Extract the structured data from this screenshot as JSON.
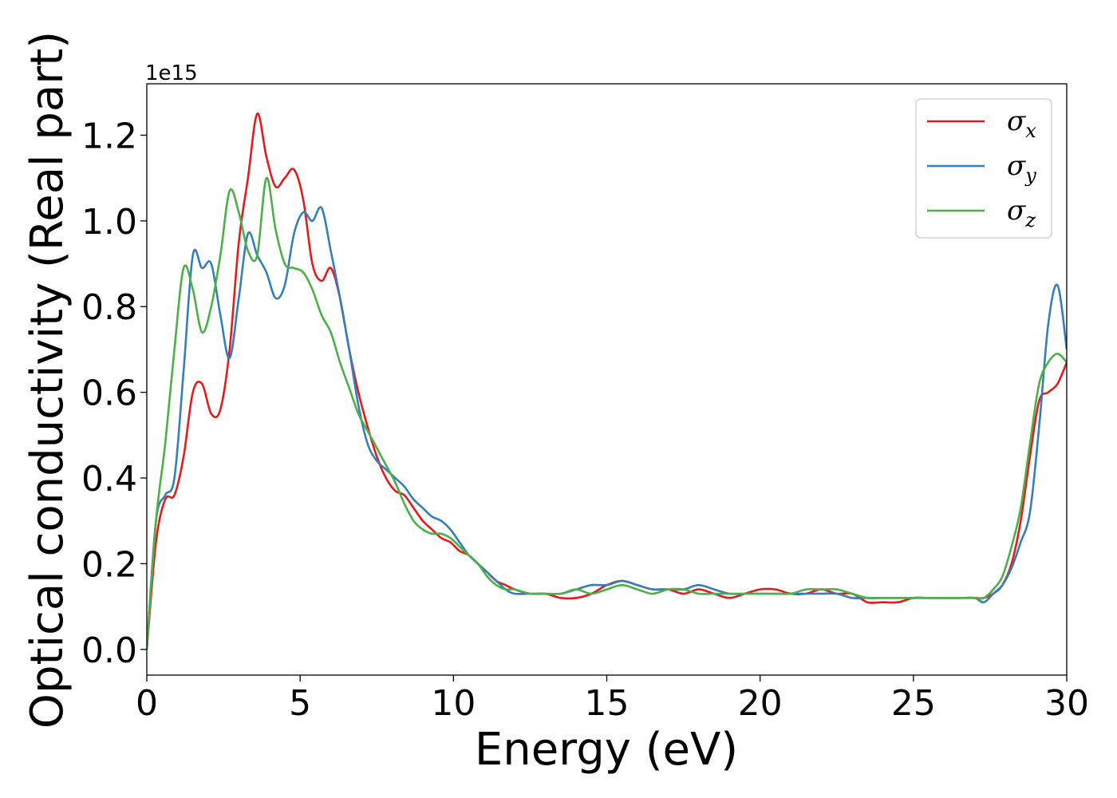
{
  "chart_data": {
    "type": "line",
    "title": "",
    "xlabel": "Energy (eV)",
    "ylabel": "Optical conductivity (Real part)",
    "y_offset_label": "1e15",
    "xlim": [
      0,
      30
    ],
    "ylim": [
      -0.06,
      1.32
    ],
    "xticks": [
      0,
      5,
      10,
      15,
      20,
      25,
      30
    ],
    "yticks": [
      0.0,
      0.2,
      0.4,
      0.6,
      0.8,
      1.0,
      1.2
    ],
    "grid": false,
    "legend_position": "top-right",
    "x": [
      0,
      0.3,
      0.6,
      0.9,
      1.2,
      1.5,
      1.8,
      2.1,
      2.4,
      2.7,
      3.0,
      3.3,
      3.6,
      3.9,
      4.2,
      4.5,
      4.8,
      5.1,
      5.4,
      5.7,
      6.0,
      6.3,
      6.6,
      6.9,
      7.2,
      7.5,
      7.8,
      8.1,
      8.4,
      8.7,
      9.0,
      9.3,
      9.6,
      9.9,
      10.2,
      10.5,
      10.8,
      11.1,
      11.4,
      11.7,
      12.0,
      12.5,
      13.0,
      13.5,
      14.0,
      14.5,
      15.0,
      15.5,
      16.0,
      16.5,
      17.0,
      17.5,
      18.0,
      18.5,
      19.0,
      19.5,
      20.0,
      20.5,
      21.0,
      21.5,
      22.0,
      22.5,
      23.0,
      23.5,
      24.0,
      24.5,
      25.0,
      25.5,
      26.0,
      26.5,
      27.0,
      27.3,
      27.6,
      27.9,
      28.2,
      28.5,
      28.8,
      29.1,
      29.4,
      29.7,
      30.0
    ],
    "series": [
      {
        "name": "σ_x",
        "color": "#e41a1c",
        "values": [
          0.0,
          0.25,
          0.35,
          0.36,
          0.45,
          0.6,
          0.62,
          0.55,
          0.56,
          0.7,
          0.95,
          1.1,
          1.25,
          1.15,
          1.08,
          1.1,
          1.12,
          1.05,
          0.9,
          0.86,
          0.89,
          0.82,
          0.7,
          0.6,
          0.52,
          0.45,
          0.4,
          0.37,
          0.36,
          0.33,
          0.3,
          0.28,
          0.26,
          0.25,
          0.23,
          0.22,
          0.2,
          0.18,
          0.16,
          0.15,
          0.14,
          0.13,
          0.13,
          0.12,
          0.12,
          0.13,
          0.15,
          0.16,
          0.15,
          0.14,
          0.14,
          0.13,
          0.14,
          0.13,
          0.12,
          0.13,
          0.14,
          0.14,
          0.13,
          0.13,
          0.14,
          0.13,
          0.13,
          0.11,
          0.11,
          0.11,
          0.12,
          0.12,
          0.12,
          0.12,
          0.12,
          0.12,
          0.13,
          0.15,
          0.2,
          0.3,
          0.45,
          0.58,
          0.6,
          0.62,
          0.67
        ]
      },
      {
        "name": "σ_y",
        "color": "#377eb8",
        "values": [
          0.0,
          0.3,
          0.36,
          0.4,
          0.65,
          0.92,
          0.89,
          0.9,
          0.78,
          0.68,
          0.82,
          0.97,
          0.92,
          0.88,
          0.82,
          0.85,
          0.97,
          1.02,
          1.0,
          1.03,
          0.93,
          0.82,
          0.7,
          0.57,
          0.48,
          0.44,
          0.42,
          0.4,
          0.38,
          0.35,
          0.33,
          0.31,
          0.3,
          0.28,
          0.25,
          0.22,
          0.2,
          0.18,
          0.16,
          0.14,
          0.13,
          0.13,
          0.13,
          0.13,
          0.14,
          0.15,
          0.15,
          0.16,
          0.15,
          0.14,
          0.14,
          0.14,
          0.15,
          0.14,
          0.13,
          0.13,
          0.13,
          0.13,
          0.13,
          0.13,
          0.13,
          0.13,
          0.12,
          0.12,
          0.12,
          0.12,
          0.12,
          0.12,
          0.12,
          0.12,
          0.12,
          0.11,
          0.13,
          0.15,
          0.19,
          0.25,
          0.32,
          0.52,
          0.76,
          0.85,
          0.7
        ]
      },
      {
        "name": "σ_z",
        "color": "#4daf4a",
        "values": [
          0.0,
          0.3,
          0.48,
          0.7,
          0.89,
          0.84,
          0.74,
          0.8,
          0.92,
          1.07,
          1.02,
          0.93,
          0.92,
          1.1,
          0.98,
          0.9,
          0.89,
          0.88,
          0.84,
          0.78,
          0.74,
          0.67,
          0.61,
          0.55,
          0.51,
          0.47,
          0.43,
          0.39,
          0.34,
          0.3,
          0.28,
          0.27,
          0.27,
          0.26,
          0.24,
          0.22,
          0.2,
          0.17,
          0.15,
          0.14,
          0.14,
          0.13,
          0.13,
          0.13,
          0.14,
          0.13,
          0.14,
          0.15,
          0.14,
          0.13,
          0.14,
          0.14,
          0.13,
          0.13,
          0.13,
          0.13,
          0.13,
          0.13,
          0.13,
          0.14,
          0.14,
          0.14,
          0.13,
          0.12,
          0.12,
          0.12,
          0.12,
          0.12,
          0.12,
          0.12,
          0.12,
          0.12,
          0.14,
          0.17,
          0.24,
          0.33,
          0.48,
          0.62,
          0.67,
          0.69,
          0.67
        ]
      }
    ]
  }
}
